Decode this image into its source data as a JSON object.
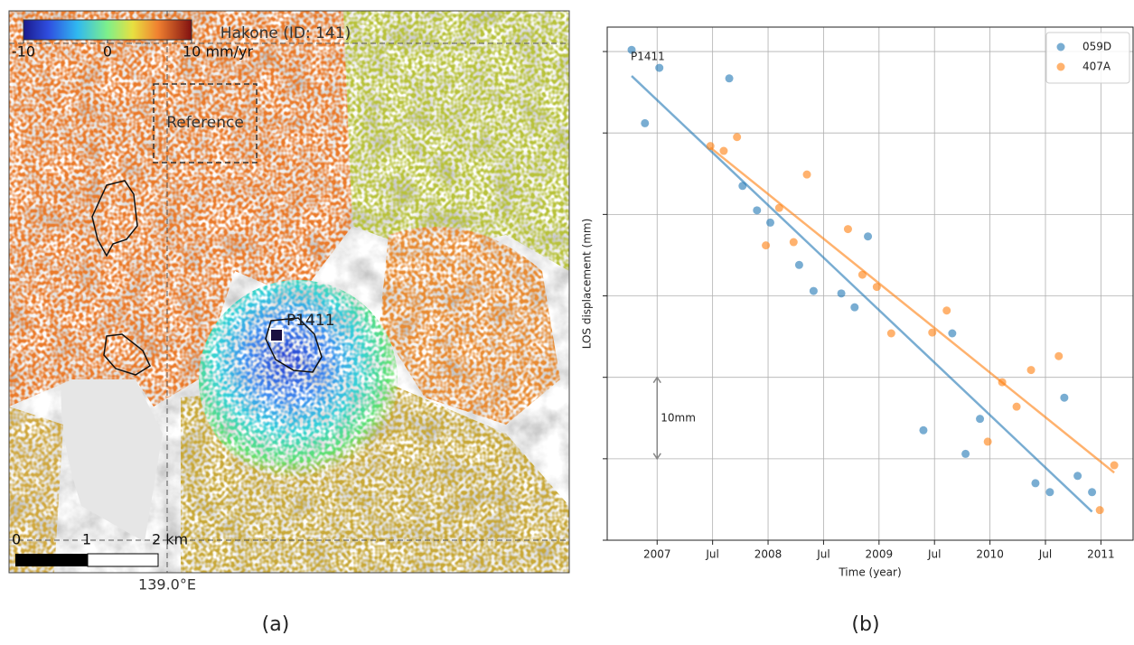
{
  "panel_a": {
    "title": "Hakone (ID: 141)",
    "colorbar": {
      "clim": [
        -10,
        10
      ],
      "ticks": [
        -10,
        0,
        {
          "value": 10,
          "label": "10 mm/yr"
        }
      ]
    },
    "reference_label": "Reference",
    "point_label": "P1411",
    "scale_bar": [
      "0",
      "1",
      "2 km"
    ],
    "longitude_label": "139.0°E",
    "panel_label": "(a)"
  },
  "chart_data": {
    "type": "scatter",
    "panel_label": "(b)",
    "xlabel": "Time (year)",
    "ylabel": "LOS displacement (mm)",
    "xlim": [
      2006.55,
      2011.29
    ],
    "ylim": [
      -60,
      3
    ],
    "xticks": [
      2007,
      {
        "value": 2007.5,
        "label": "Jul"
      },
      2008,
      {
        "value": 2008.5,
        "label": "Jul"
      },
      2009,
      {
        "value": 2009.5,
        "label": "Jul"
      },
      2010,
      {
        "value": 2010.5,
        "label": "Jul"
      },
      2011
    ],
    "yticks": [
      -60,
      -50,
      -40,
      -30,
      -20,
      -10,
      0
    ],
    "grid": true,
    "legend": "upper right",
    "alpha": 0.6,
    "point_label": "P1411",
    "scale_bar": {
      "label": "10mm",
      "from": -40,
      "to": -50
    },
    "series": [
      {
        "name": "059D",
        "color": "#1f77b4",
        "x": [
          2006.77,
          2007.02,
          2006.89,
          2007.65,
          2007.77,
          2007.9,
          2008.02,
          2008.28,
          2008.41,
          2008.66,
          2008.78,
          2008.9,
          2009.4,
          2009.66,
          2009.78,
          2009.91,
          2010.41,
          2010.54,
          2010.67,
          2010.79,
          2010.92
        ],
        "values": [
          0.2,
          -2.0,
          -8.8,
          -3.3,
          -16.5,
          -19.5,
          -21.0,
          -26.2,
          -29.4,
          -29.7,
          -31.4,
          -22.7,
          -46.5,
          -34.6,
          -49.4,
          -45.1,
          -53.0,
          -54.1,
          -42.5,
          -52.1,
          -54.1
        ],
        "trend": {
          "x": [
            2006.77,
            2010.92
          ],
          "y": [
            -3.0,
            -56.5
          ]
        }
      },
      {
        "name": "407A",
        "color": "#ff7f0e",
        "x": [
          2007.48,
          2007.6,
          2007.72,
          2007.98,
          2008.1,
          2008.23,
          2008.35,
          2008.72,
          2008.85,
          2008.98,
          2009.11,
          2009.48,
          2009.61,
          2009.98,
          2010.11,
          2010.24,
          2010.37,
          2010.62,
          2010.99,
          2011.12
        ],
        "values": [
          -11.6,
          -12.2,
          -10.5,
          -23.8,
          -19.2,
          -23.4,
          -15.1,
          -21.8,
          -27.4,
          -28.9,
          -34.6,
          -34.5,
          -31.8,
          -47.9,
          -40.6,
          -43.6,
          -39.1,
          -37.4,
          -56.3,
          -50.8
        ],
        "trend": {
          "x": [
            2007.48,
            2011.12
          ],
          "y": [
            -11.8,
            -51.7
          ]
        }
      }
    ]
  }
}
